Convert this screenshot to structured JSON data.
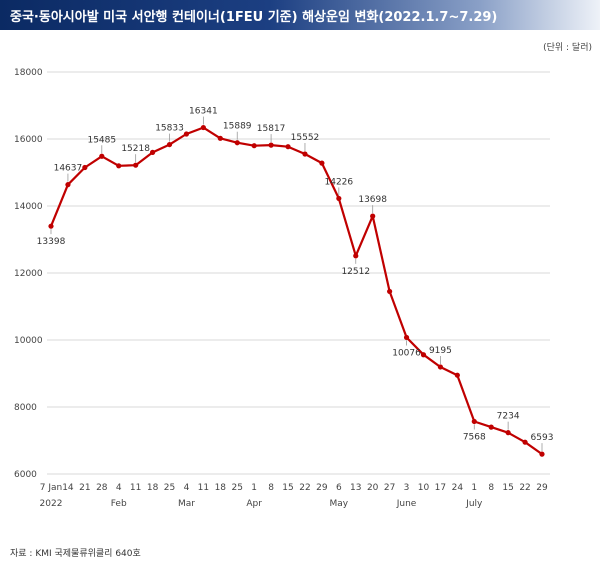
{
  "header": {
    "title": "중국·동아시아발 미국 서안행 컨테이너(1FEU 기준) 해상운임 변화(2022.1.7~7.29)",
    "unit": "(단위 : 달러)",
    "source": "자료 : KMI 국제물류위클리 640호"
  },
  "colors": {
    "series": "#c00000",
    "title_bg": "#0b2a63",
    "grid": "#d9d9d9"
  },
  "chart_data": {
    "type": "line",
    "title": "중국·동아시아발 미국 서안행 컨테이너(1FEU 기준) 해상운임 변화(2022.1.7~7.29)",
    "xlabel": "",
    "ylabel": "",
    "ylim": [
      6000,
      18000
    ],
    "yticks": [
      6000,
      8000,
      10000,
      12000,
      14000,
      16000,
      18000
    ],
    "grid": true,
    "legend": "none",
    "x": [
      "7 Jan",
      "14",
      "21",
      "28",
      "4",
      "11",
      "18",
      "25",
      "4",
      "11",
      "18",
      "25",
      "1",
      "8",
      "15",
      "22",
      "29",
      "6",
      "13",
      "20",
      "27",
      "3",
      "10",
      "17",
      "24",
      "1",
      "8",
      "15",
      "22",
      "29"
    ],
    "month_labels": [
      {
        "index": 0,
        "text": "2022"
      },
      {
        "index": 4,
        "text": "Feb"
      },
      {
        "index": 8,
        "text": "Mar"
      },
      {
        "index": 12,
        "text": "Apr"
      },
      {
        "index": 17,
        "text": "May"
      },
      {
        "index": 21,
        "text": "June"
      },
      {
        "index": 25,
        "text": "July"
      }
    ],
    "series": [
      {
        "values": [
          13398,
          14637,
          15150,
          15485,
          15200,
          15218,
          15600,
          15833,
          16150,
          16341,
          16020,
          15889,
          15800,
          15817,
          15770,
          15552,
          15280,
          14226,
          12512,
          13698,
          11450,
          10076,
          9560,
          9195,
          8950,
          7568,
          7400,
          7234,
          6950,
          6593
        ]
      }
    ],
    "data_labels": [
      {
        "index": 0,
        "text": "13398",
        "pos": "below"
      },
      {
        "index": 1,
        "text": "14637",
        "pos": "above"
      },
      {
        "index": 3,
        "text": "15485",
        "pos": "above"
      },
      {
        "index": 5,
        "text": "15218",
        "pos": "above"
      },
      {
        "index": 7,
        "text": "15833",
        "pos": "above"
      },
      {
        "index": 9,
        "text": "16341",
        "pos": "above"
      },
      {
        "index": 11,
        "text": "15889",
        "pos": "above"
      },
      {
        "index": 13,
        "text": "15817",
        "pos": "above"
      },
      {
        "index": 15,
        "text": "15552",
        "pos": "above"
      },
      {
        "index": 17,
        "text": "14226",
        "pos": "above"
      },
      {
        "index": 18,
        "text": "12512",
        "pos": "below"
      },
      {
        "index": 19,
        "text": "13698",
        "pos": "above"
      },
      {
        "index": 21,
        "text": "10076",
        "pos": "below"
      },
      {
        "index": 23,
        "text": "9195",
        "pos": "above"
      },
      {
        "index": 25,
        "text": "7568",
        "pos": "below"
      },
      {
        "index": 27,
        "text": "7234",
        "pos": "above"
      },
      {
        "index": 29,
        "text": "6593",
        "pos": "above"
      }
    ]
  }
}
